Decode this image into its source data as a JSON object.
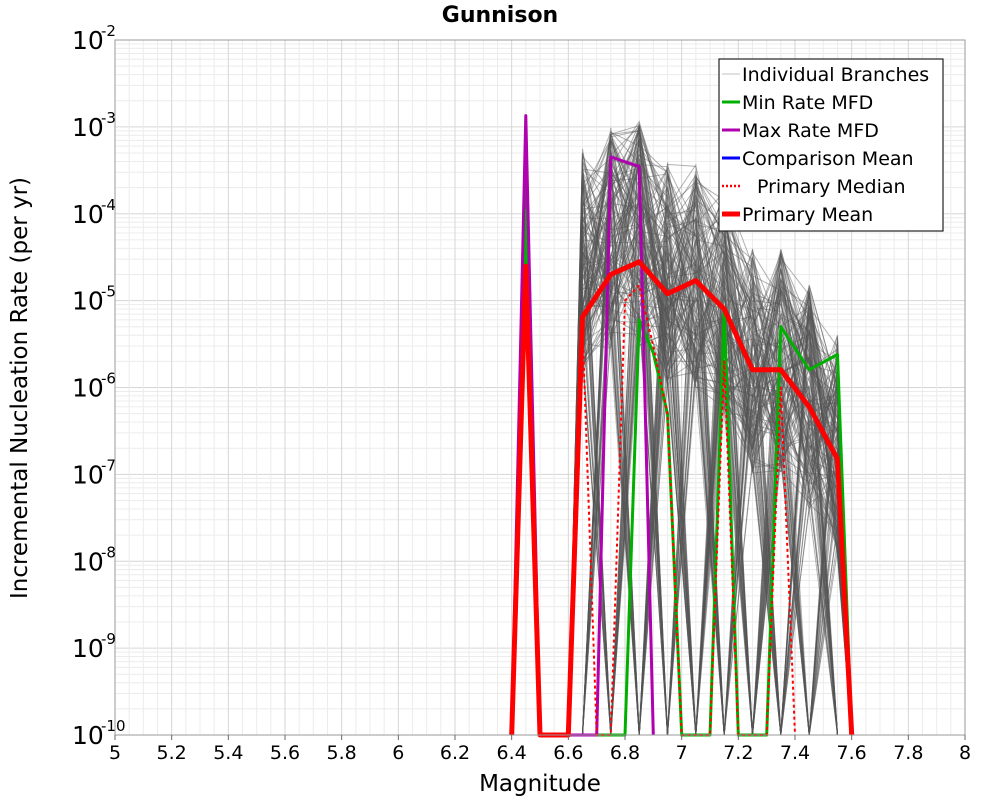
{
  "chart_data": {
    "type": "line",
    "title": "Gunnison",
    "xlabel": "Magnitude",
    "ylabel": "Incremental Nucleation Rate (per yr)",
    "xlim": [
      5,
      8
    ],
    "ylim": [
      1e-10,
      0.01
    ],
    "yscale": "log",
    "grid": true,
    "legend_position": "top-right",
    "x_ticks": [
      "5",
      "5.2",
      "5.4",
      "5.6",
      "5.8",
      "6",
      "6.2",
      "6.4",
      "6.6",
      "6.8",
      "7",
      "7.2",
      "7.4",
      "7.6",
      "7.8",
      "8"
    ],
    "y_ticks": [
      {
        "base": "10",
        "exp": "-10"
      },
      {
        "base": "10",
        "exp": "-9"
      },
      {
        "base": "10",
        "exp": "-8"
      },
      {
        "base": "10",
        "exp": "-7"
      },
      {
        "base": "10",
        "exp": "-6"
      },
      {
        "base": "10",
        "exp": "-5"
      },
      {
        "base": "10",
        "exp": "-4"
      },
      {
        "base": "10",
        "exp": "-3"
      },
      {
        "base": "10",
        "exp": "-2"
      }
    ],
    "legend": [
      {
        "label": "Individual Branches",
        "color": "#c0c0c0",
        "style": "thin"
      },
      {
        "label": "Min Rate MFD",
        "color": "#00b000",
        "style": "solid"
      },
      {
        "label": "Max Rate MFD",
        "color": "#b000b0",
        "style": "solid"
      },
      {
        "label": "Comparison Mean",
        "color": "#0000ff",
        "style": "solid"
      },
      {
        "label": "Primary Median",
        "color": "#ff0000",
        "style": "dotted"
      },
      {
        "label": "Primary Mean",
        "color": "#ff0000",
        "style": "thick"
      }
    ],
    "series": [
      {
        "name": "Min Rate MFD",
        "color": "#00b000",
        "width": 3,
        "points": [
          [
            6.4,
            1e-10
          ],
          [
            6.45,
            0.00011
          ],
          [
            6.5,
            1e-10
          ],
          [
            6.6,
            1e-10
          ],
          [
            6.65,
            1e-10
          ],
          [
            6.8,
            1e-10
          ],
          [
            6.85,
            6e-06
          ],
          [
            6.9,
            2.5e-06
          ],
          [
            6.95,
            5e-07
          ],
          [
            7.0,
            1e-10
          ],
          [
            7.1,
            1e-10
          ],
          [
            7.15,
            8e-06
          ],
          [
            7.2,
            1e-10
          ],
          [
            7.3,
            1e-10
          ],
          [
            7.35,
            5e-06
          ],
          [
            7.45,
            1.6e-06
          ],
          [
            7.55,
            2.4e-06
          ],
          [
            7.6,
            1e-10
          ]
        ]
      },
      {
        "name": "Max Rate MFD",
        "color": "#b000b0",
        "width": 3,
        "points": [
          [
            6.4,
            1e-10
          ],
          [
            6.45,
            0.00135
          ],
          [
            6.5,
            1e-10
          ],
          [
            6.7,
            1e-10
          ],
          [
            6.75,
            0.00045
          ],
          [
            6.85,
            0.00035
          ],
          [
            6.9,
            1e-10
          ]
        ]
      },
      {
        "name": "Primary Median",
        "color": "#ff0000",
        "width": 2,
        "dash": "3,3",
        "points": [
          [
            6.4,
            1e-10
          ],
          [
            6.45,
            2.5e-05
          ],
          [
            6.5,
            1e-10
          ],
          [
            6.6,
            1e-10
          ],
          [
            6.65,
            5e-06
          ],
          [
            6.7,
            1e-10
          ],
          [
            6.75,
            1e-10
          ],
          [
            6.8,
            1e-05
          ],
          [
            6.85,
            1.5e-05
          ],
          [
            6.9,
            3e-06
          ],
          [
            6.95,
            5e-07
          ],
          [
            7.0,
            1e-10
          ],
          [
            7.1,
            1e-10
          ],
          [
            7.15,
            2e-06
          ],
          [
            7.2,
            1e-10
          ],
          [
            7.3,
            1e-10
          ],
          [
            7.35,
            1e-06
          ],
          [
            7.4,
            1e-10
          ]
        ]
      },
      {
        "name": "Primary Mean",
        "color": "#ff0000",
        "width": 5,
        "points": [
          [
            6.4,
            1e-10
          ],
          [
            6.45,
            2.5e-05
          ],
          [
            6.5,
            1e-10
          ],
          [
            6.6,
            1e-10
          ],
          [
            6.65,
            6.5e-06
          ],
          [
            6.75,
            2e-05
          ],
          [
            6.85,
            2.8e-05
          ],
          [
            6.95,
            1.2e-05
          ],
          [
            7.05,
            1.7e-05
          ],
          [
            7.15,
            8e-06
          ],
          [
            7.25,
            1.6e-06
          ],
          [
            7.35,
            1.6e-06
          ],
          [
            7.45,
            6e-07
          ],
          [
            7.55,
            1.5e-07
          ],
          [
            7.6,
            1e-10
          ]
        ]
      }
    ]
  }
}
